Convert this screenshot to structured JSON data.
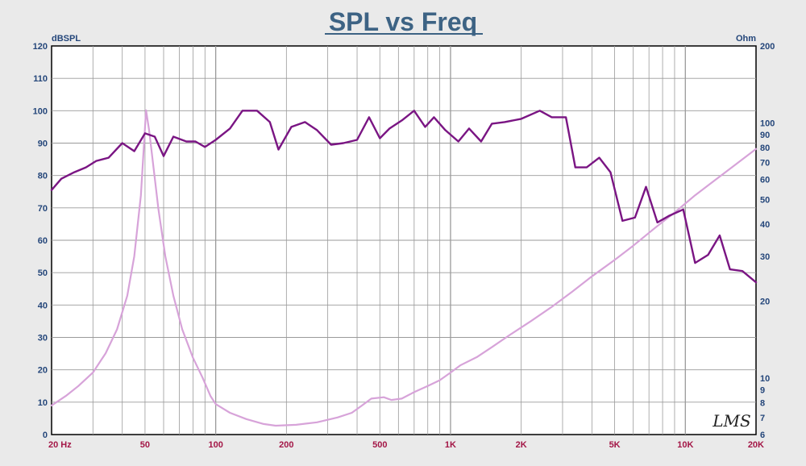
{
  "chart_data": {
    "type": "line",
    "title": "SPL vs Freq",
    "y_left_unit": "dBSPL",
    "y_right_unit": "Ohm",
    "x_scale": "log",
    "xlim": [
      20,
      20000
    ],
    "ylim_left": [
      0,
      120
    ],
    "ylim_right": [
      6,
      200
    ],
    "y_right_scale": "log",
    "x_ticks": [
      {
        "value": 20,
        "label": "20  Hz"
      },
      {
        "value": 50,
        "label": "50"
      },
      {
        "value": 100,
        "label": "100"
      },
      {
        "value": 200,
        "label": "200"
      },
      {
        "value": 500,
        "label": "500"
      },
      {
        "value": 1000,
        "label": "1K"
      },
      {
        "value": 2000,
        "label": "2K"
      },
      {
        "value": 5000,
        "label": "5K"
      },
      {
        "value": 10000,
        "label": "10K"
      },
      {
        "value": 20000,
        "label": "20K"
      }
    ],
    "y_left_ticks": [
      0,
      10,
      20,
      30,
      40,
      50,
      60,
      70,
      80,
      90,
      100,
      110,
      120
    ],
    "y_right_ticks": [
      {
        "value": 6,
        "label": "6"
      },
      {
        "value": 7,
        "label": "7"
      },
      {
        "value": 8,
        "label": "8"
      },
      {
        "value": 9,
        "label": "9"
      },
      {
        "value": 10,
        "label": "10"
      },
      {
        "value": 20,
        "label": "20"
      },
      {
        "value": 30,
        "label": "30"
      },
      {
        "value": 40,
        "label": "40"
      },
      {
        "value": 50,
        "label": "50"
      },
      {
        "value": 60,
        "label": "60"
      },
      {
        "value": 70,
        "label": "70"
      },
      {
        "value": 80,
        "label": "80"
      },
      {
        "value": 90,
        "label": "90"
      },
      {
        "value": 100,
        "label": "100"
      },
      {
        "value": 200,
        "label": "200"
      }
    ],
    "grid": true,
    "watermark": "LMS",
    "series": [
      {
        "axis": "left",
        "color": "#7a1583",
        "points": [
          [
            20,
            75.5
          ],
          [
            22,
            79
          ],
          [
            25,
            81
          ],
          [
            28,
            82.5
          ],
          [
            31,
            84.5
          ],
          [
            35,
            85.5
          ],
          [
            40,
            90
          ],
          [
            45,
            87.5
          ],
          [
            50,
            93
          ],
          [
            55,
            92
          ],
          [
            60,
            86
          ],
          [
            66,
            92
          ],
          [
            75,
            90.5
          ],
          [
            82,
            90.5
          ],
          [
            90,
            88.8
          ],
          [
            100,
            91
          ],
          [
            115,
            94.5
          ],
          [
            130,
            100
          ],
          [
            150,
            100
          ],
          [
            170,
            96.5
          ],
          [
            185,
            88
          ],
          [
            210,
            95
          ],
          [
            240,
            96.5
          ],
          [
            270,
            94
          ],
          [
            310,
            89.5
          ],
          [
            350,
            90
          ],
          [
            400,
            91
          ],
          [
            450,
            98
          ],
          [
            500,
            91.5
          ],
          [
            550,
            94.5
          ],
          [
            620,
            97
          ],
          [
            700,
            100
          ],
          [
            780,
            95
          ],
          [
            850,
            98
          ],
          [
            950,
            94
          ],
          [
            1080,
            90.5
          ],
          [
            1200,
            94.5
          ],
          [
            1350,
            90.5
          ],
          [
            1500,
            96
          ],
          [
            1700,
            96.5
          ],
          [
            2000,
            97.5
          ],
          [
            2400,
            100
          ],
          [
            2700,
            98
          ],
          [
            3100,
            98
          ],
          [
            3400,
            82.5
          ],
          [
            3800,
            82.5
          ],
          [
            4300,
            85.5
          ],
          [
            4800,
            81
          ],
          [
            5400,
            66
          ],
          [
            6100,
            67
          ],
          [
            6800,
            76.5
          ],
          [
            7600,
            65.5
          ],
          [
            8500,
            67.5
          ],
          [
            9800,
            69.5
          ],
          [
            11000,
            53
          ],
          [
            12500,
            55.5
          ],
          [
            14000,
            61.5
          ],
          [
            15500,
            51
          ],
          [
            17500,
            50.5
          ],
          [
            20000,
            47
          ]
        ]
      },
      {
        "axis": "right",
        "color": "#d7a3d9",
        "points": [
          [
            20,
            7.8
          ],
          [
            23,
            8.5
          ],
          [
            26,
            9.3
          ],
          [
            30,
            10.5
          ],
          [
            34,
            12.5
          ],
          [
            38,
            15.5
          ],
          [
            42,
            21
          ],
          [
            45,
            30
          ],
          [
            48,
            52
          ],
          [
            50.5,
            112
          ],
          [
            52,
            94
          ],
          [
            54,
            70
          ],
          [
            57,
            46
          ],
          [
            61,
            30
          ],
          [
            66,
            21
          ],
          [
            72,
            15.5
          ],
          [
            80,
            12
          ],
          [
            88,
            10
          ],
          [
            95,
            8.5
          ],
          [
            100,
            7.9
          ],
          [
            115,
            7.3
          ],
          [
            135,
            6.9
          ],
          [
            160,
            6.6
          ],
          [
            180,
            6.5
          ],
          [
            220,
            6.55
          ],
          [
            270,
            6.7
          ],
          [
            330,
            7.0
          ],
          [
            380,
            7.3
          ],
          [
            420,
            7.8
          ],
          [
            460,
            8.3
          ],
          [
            520,
            8.4
          ],
          [
            560,
            8.2
          ],
          [
            620,
            8.3
          ],
          [
            700,
            8.8
          ],
          [
            800,
            9.3
          ],
          [
            900,
            9.8
          ],
          [
            1000,
            10.5
          ],
          [
            1100,
            11.2
          ],
          [
            1300,
            12.1
          ],
          [
            1500,
            13.2
          ],
          [
            1800,
            14.8
          ],
          [
            2200,
            16.7
          ],
          [
            2700,
            19.0
          ],
          [
            3300,
            21.8
          ],
          [
            4000,
            25.0
          ],
          [
            5000,
            29.0
          ],
          [
            6000,
            33.0
          ],
          [
            7500,
            39.0
          ],
          [
            9000,
            44.5
          ],
          [
            11000,
            52.0
          ],
          [
            13500,
            60.0
          ],
          [
            16500,
            69.0
          ],
          [
            20000,
            79.0
          ]
        ]
      }
    ]
  }
}
